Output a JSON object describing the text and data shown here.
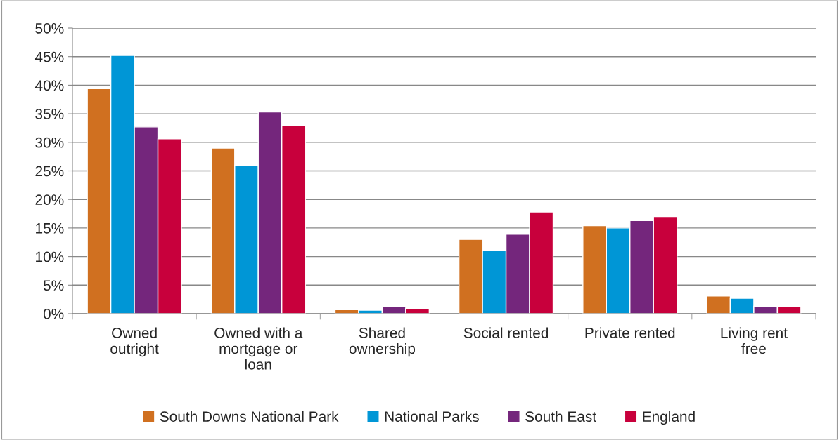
{
  "chart_data": {
    "type": "bar",
    "categories": [
      "Owned\noutright",
      "Owned with a\nmortgage or\nloan",
      "Shared\nownership",
      "Social rented",
      "Private rented",
      "Living rent\nfree"
    ],
    "series": [
      {
        "name": "South Downs National Park",
        "color": "#d07020",
        "values": [
          39.4,
          29.0,
          0.7,
          13.0,
          15.4,
          3.1
        ]
      },
      {
        "name": "National Parks",
        "color": "#0096d6",
        "values": [
          45.2,
          26.0,
          0.6,
          11.1,
          15.0,
          2.7
        ]
      },
      {
        "name": "South East",
        "color": "#74267c",
        "values": [
          32.7,
          35.3,
          1.2,
          13.9,
          16.3,
          1.3
        ]
      },
      {
        "name": "England",
        "color": "#c8003c",
        "values": [
          30.6,
          32.9,
          0.9,
          17.8,
          17.0,
          1.3
        ]
      }
    ],
    "ylim": [
      0,
      50
    ],
    "yticks": [
      {
        "value": 0,
        "label": "0%"
      },
      {
        "value": 5,
        "label": "5%"
      },
      {
        "value": 10,
        "label": "10%"
      },
      {
        "value": 15,
        "label": "15%"
      },
      {
        "value": 20,
        "label": "20%"
      },
      {
        "value": 25,
        "label": "25%"
      },
      {
        "value": 30,
        "label": "30%"
      },
      {
        "value": 35,
        "label": "35%"
      },
      {
        "value": 40,
        "label": "40%"
      },
      {
        "value": 45,
        "label": "45%"
      },
      {
        "value": 50,
        "label": "50%"
      }
    ],
    "grid": "y",
    "legend": "bottom"
  }
}
